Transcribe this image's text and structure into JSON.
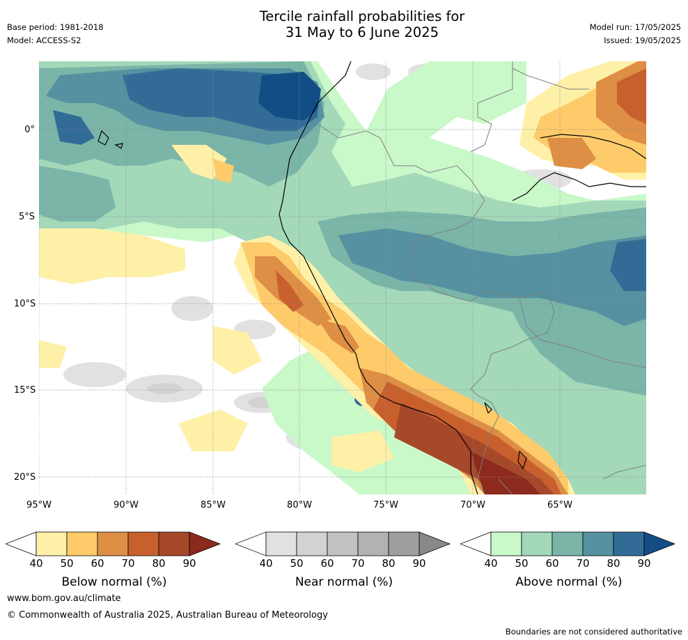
{
  "header": {
    "title_line1": "Tercile rainfall probabilities for",
    "title_line2": "31 May to 6 June 2025",
    "base_period": "Base period: 1981-2018",
    "model": "Model: ACCESS-S2",
    "model_run": "Model run: 17/05/2025",
    "issued": "Issued: 19/05/2025"
  },
  "map": {
    "lat_labels": [
      "0°",
      "5°S",
      "10°S",
      "15°S",
      "20°S"
    ],
    "lon_labels": [
      "95°W",
      "90°W",
      "85°W",
      "80°W",
      "75°W",
      "70°W",
      "65°W"
    ],
    "colors": {
      "below": [
        "#fff0a8",
        "#fecb6b",
        "#de8e45",
        "#c8602e",
        "#a6482a",
        "#8c2a1d"
      ],
      "near": [
        "#e1e1e1",
        "#d2d2d2",
        "#c2c2c2",
        "#b2b2b2",
        "#9e9e9e",
        "#888888"
      ],
      "above": [
        "#c9f8c9",
        "#a3d8b9",
        "#7ab5a8",
        "#5591a0",
        "#336b97",
        "#134d85"
      ]
    }
  },
  "colorbars": {
    "ticks": [
      "40",
      "50",
      "60",
      "70",
      "80",
      "90"
    ],
    "below_title": "Below normal (%)",
    "near_title": "Near normal (%)",
    "above_title": "Above normal (%)"
  },
  "footer": {
    "url": "www.bom.gov.au/climate",
    "copyright": "© Commonwealth of Australia 2025, Australian Bureau of Meteorology",
    "disclaimer": "Boundaries are not considered authoritative"
  }
}
